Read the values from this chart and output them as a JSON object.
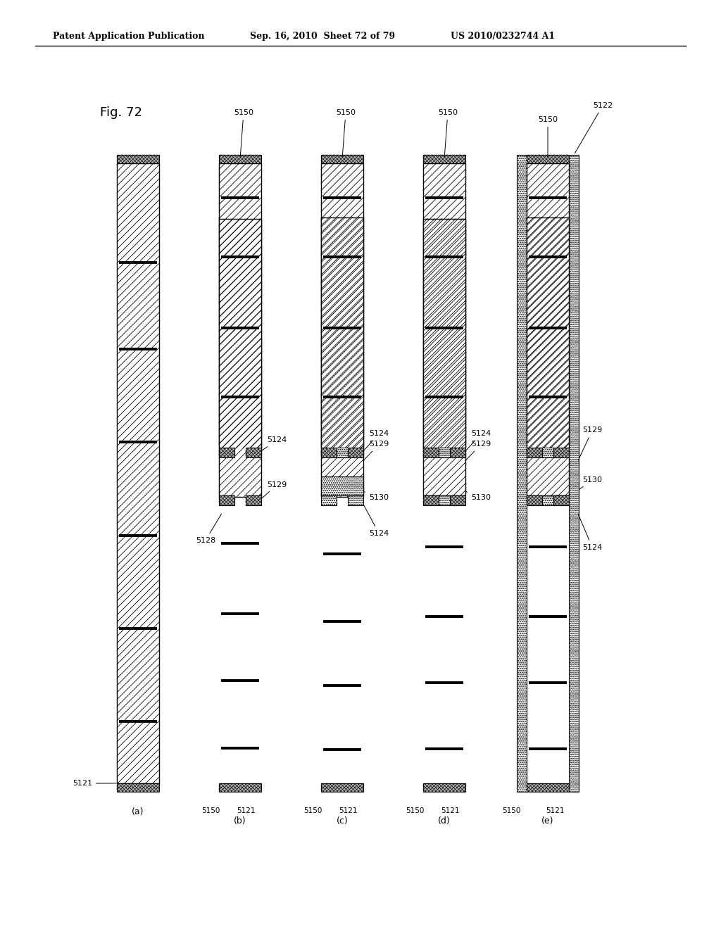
{
  "header_left": "Patent Application Publication",
  "header_mid": "Sep. 16, 2010  Sheet 72 of 79",
  "header_right": "US 2010/0232744 A1",
  "fig_label": "Fig. 72",
  "panel_labels": [
    "(a)",
    "(b)",
    "(c)",
    "(d)",
    "(e)"
  ],
  "bg_color": "#ffffff",
  "black": "#000000",
  "gray": "#888888",
  "light_gray": "#cccccc"
}
